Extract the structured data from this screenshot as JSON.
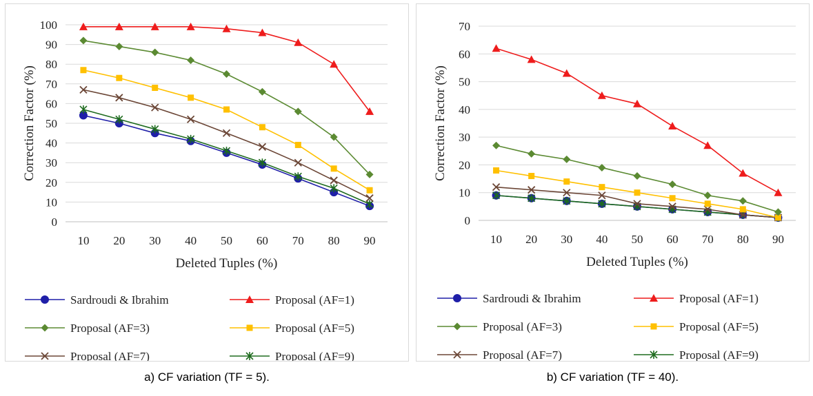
{
  "charts": [
    {
      "caption": "a)  CF variation (TF = 5).",
      "chart_data": {
        "type": "line",
        "xlabel": "Deleted Tuples (%)",
        "ylabel": "Correction Factor (%)",
        "x": [
          "10",
          "20",
          "30",
          "40",
          "50",
          "60",
          "70",
          "80",
          "90"
        ],
        "ylim": [
          0,
          100
        ],
        "yticks": [
          "0",
          "10",
          "20",
          "30",
          "40",
          "50",
          "60",
          "70",
          "80",
          "90",
          "100"
        ],
        "grid": "horizontal",
        "legend": "bottom",
        "series": [
          {
            "name": "Sardroudi & Ibrahim",
            "color": "#1f1fa8",
            "marker": "circle",
            "values": [
              54,
              50,
              45,
              41,
              35,
              29,
              22,
              15,
              8
            ]
          },
          {
            "name": "Proposal (AF=1)",
            "color": "#ee1c1c",
            "marker": "triangle",
            "values": [
              99,
              99,
              99,
              99,
              98,
              96,
              91,
              80,
              56
            ]
          },
          {
            "name": "Proposal (AF=3)",
            "color": "#5b8a32",
            "marker": "diamond",
            "values": [
              92,
              89,
              86,
              82,
              75,
              66,
              56,
              43,
              24
            ]
          },
          {
            "name": "Proposal (AF=5)",
            "color": "#ffc000",
            "marker": "square",
            "values": [
              77,
              73,
              68,
              63,
              57,
              48,
              39,
              27,
              16
            ]
          },
          {
            "name": "Proposal (AF=7)",
            "color": "#6b4636",
            "marker": "x",
            "values": [
              67,
              63,
              58,
              52,
              45,
              38,
              30,
              21,
              12
            ]
          },
          {
            "name": "Proposal (AF=9)",
            "color": "#1e6b1e",
            "marker": "star",
            "values": [
              57,
              52,
              47,
              42,
              36,
              30,
              23,
              17,
              9
            ]
          }
        ]
      }
    },
    {
      "caption": "b)  CF variation (TF = 40).",
      "chart_data": {
        "type": "line",
        "xlabel": "Deleted Tuples (%)",
        "ylabel": "Correction Factor (%)",
        "x": [
          "10",
          "20",
          "30",
          "40",
          "50",
          "60",
          "70",
          "80",
          "90"
        ],
        "ylim": [
          0,
          70
        ],
        "yticks": [
          "0",
          "10",
          "20",
          "30",
          "40",
          "50",
          "60",
          "70"
        ],
        "grid": "horizontal",
        "legend": "bottom",
        "series": [
          {
            "name": "Sardroudi & Ibrahim",
            "color": "#1f1fa8",
            "marker": "circle",
            "values": [
              9,
              8,
              7,
              6,
              5,
              4,
              3,
              2,
              1
            ]
          },
          {
            "name": "Proposal (AF=1)",
            "color": "#ee1c1c",
            "marker": "triangle",
            "values": [
              62,
              58,
              53,
              45,
              42,
              34,
              27,
              17,
              10
            ]
          },
          {
            "name": "Proposal (AF=3)",
            "color": "#5b8a32",
            "marker": "diamond",
            "values": [
              27,
              24,
              22,
              19,
              16,
              13,
              9,
              7,
              3
            ]
          },
          {
            "name": "Proposal (AF=5)",
            "color": "#ffc000",
            "marker": "square",
            "values": [
              18,
              16,
              14,
              12,
              10,
              8,
              6,
              4,
              1
            ]
          },
          {
            "name": "Proposal (AF=7)",
            "color": "#6b4636",
            "marker": "x",
            "values": [
              12,
              11,
              10,
              9,
              6,
              5,
              4,
              2,
              1
            ]
          },
          {
            "name": "Proposal (AF=9)",
            "color": "#1e6b1e",
            "marker": "star",
            "values": [
              9,
              8,
              7,
              6,
              5,
              4,
              3,
              2,
              1
            ]
          }
        ]
      }
    }
  ]
}
